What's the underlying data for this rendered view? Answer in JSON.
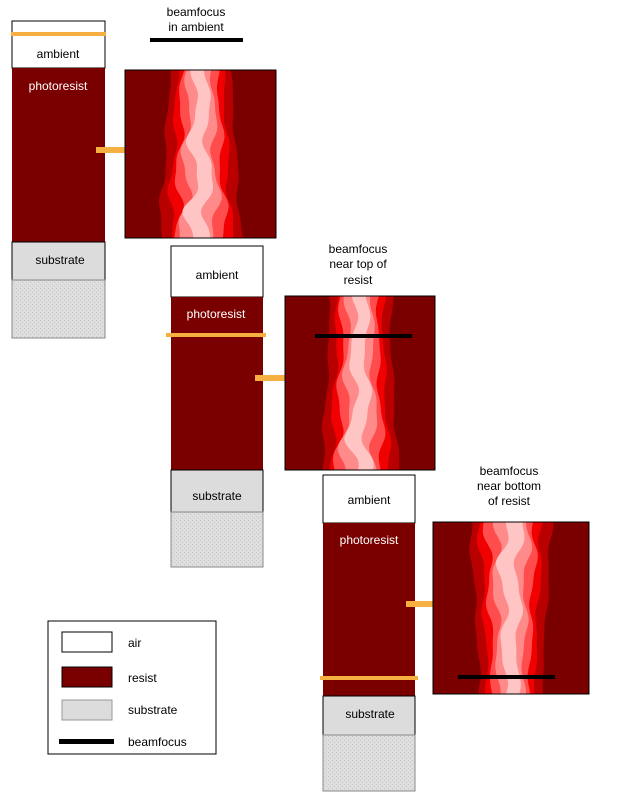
{
  "colors": {
    "air": "#ffffff",
    "resist": "#7a0000",
    "substrate": "#dcdcdc",
    "focus_line": "#f5b041",
    "arrow": "#f5b041",
    "beamfocus": "#000000",
    "intensity_ring1": "#b80000",
    "intensity_ring2": "#f00000",
    "intensity_ring3": "#ff4c4c",
    "intensity_core": "#ff8a8a",
    "intensity_center": "#ffc4c4"
  },
  "stacks": [
    {
      "ambient_label": "ambient",
      "resist_label": "photoresist",
      "substrate_label": "substrate",
      "focus_position": "in ambient",
      "caption_lines": [
        "beamfocus",
        "in ambient"
      ]
    },
    {
      "ambient_label": "ambient",
      "resist_label": "photoresist",
      "substrate_label": "substrate",
      "focus_position": "near top of resist",
      "caption_lines": [
        "beamfocus",
        "near top of",
        "resist"
      ]
    },
    {
      "ambient_label": "ambient",
      "resist_label": "photoresist",
      "substrate_label": "substrate",
      "focus_position": "near bottom of resist",
      "caption_lines": [
        "beamfocus",
        "near bottom",
        "of resist"
      ]
    }
  ],
  "legend": {
    "items": [
      {
        "label": "air",
        "swatch": "air"
      },
      {
        "label": "resist",
        "swatch": "resist"
      },
      {
        "label": "substrate",
        "swatch": "substrate"
      },
      {
        "label": "beamfocus",
        "swatch": "beamfocus"
      }
    ]
  }
}
